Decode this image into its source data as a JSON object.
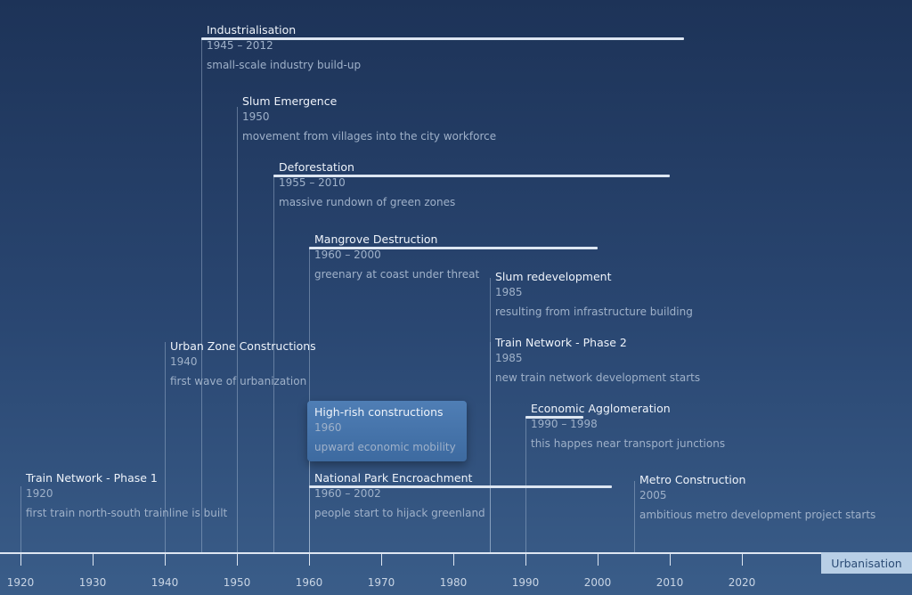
{
  "axis": {
    "label": "Urbanisation",
    "ticks": [
      "1920",
      "1930",
      "1940",
      "1950",
      "1960",
      "1970",
      "1980",
      "1990",
      "2000",
      "2010",
      "2020"
    ]
  },
  "events": [
    {
      "title": "Industrialisation",
      "date": "1945 – 2012",
      "description": "small-scale industry build-up",
      "start": 1945,
      "end": 2012
    },
    {
      "title": "Slum Emergence",
      "date": "1950",
      "description": "movement from villages into the city workforce",
      "start": 1950
    },
    {
      "title": "Deforestation",
      "date": "1955 – 2010",
      "description": "massive rundown of green zones",
      "start": 1955,
      "end": 2010
    },
    {
      "title": "Mangrove Destruction",
      "date": "1960 – 2000",
      "description": "greenary at coast under threat",
      "start": 1960,
      "end": 2000
    },
    {
      "title": "Slum redevelopment",
      "date": "1985",
      "description": "resulting from infrastructure building",
      "start": 1985
    },
    {
      "title": "Urban Zone Constructions",
      "date": "1940",
      "description": "first wave of urbanization",
      "start": 1940
    },
    {
      "title": "Train Network - Phase 2",
      "date": "1985",
      "description": "new train network development starts",
      "start": 1985
    },
    {
      "title": "High-rish constructions",
      "date": "1960",
      "description": "upward economic mobility",
      "start": 1960,
      "highlighted": true
    },
    {
      "title": "Economic Agglomeration",
      "date": "1990 – 1998",
      "description": "this happes near transport junctions",
      "start": 1990,
      "end": 1998
    },
    {
      "title": "National Park Encroachment",
      "date": "1960 – 2002",
      "description": "people start to hijack greenland",
      "start": 1960,
      "end": 2002
    },
    {
      "title": "Train Network - Phase 1",
      "date": "1920",
      "description": "first train north-south trainline is built",
      "start": 1920
    },
    {
      "title": "Metro Construction",
      "date": "2005",
      "description": "ambitious metro development project starts",
      "start": 2005
    }
  ]
}
